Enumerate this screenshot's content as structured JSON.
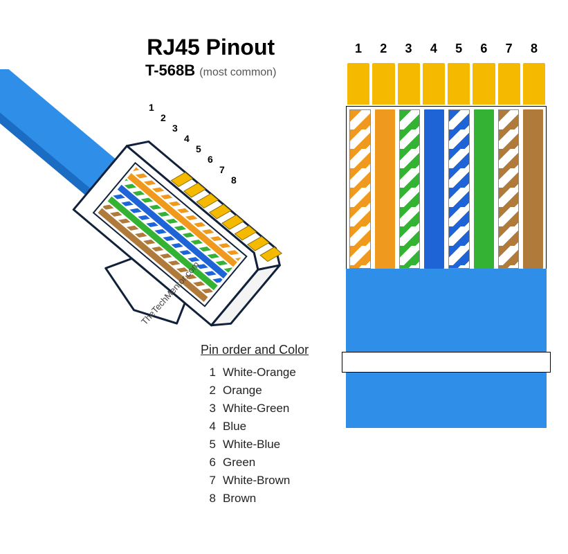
{
  "title": {
    "main": "RJ45  Pinout",
    "standard": "T-568B",
    "note": "(most common)"
  },
  "source_credit": "TheTechMentor.com",
  "colors": {
    "contact_gold": "#f5b900",
    "cable_jacket": "#2f8fe8",
    "cable_jacket_side": "#1b6dc4",
    "connector_outline": "#11213a",
    "connector_fill": "#ffffff",
    "orange": "#ef9a1e",
    "blue": "#1f64d6",
    "green": "#33b233",
    "brown": "#b07a3a",
    "white": "#ffffff"
  },
  "pins": [
    {
      "num": "1",
      "label": "White-Orange",
      "type": "striped",
      "stripe": "#ef9a1e"
    },
    {
      "num": "2",
      "label": "Orange",
      "type": "solid",
      "solid": "#ef9a1e"
    },
    {
      "num": "3",
      "label": "White-Green",
      "type": "striped",
      "stripe": "#33b233"
    },
    {
      "num": "4",
      "label": "Blue",
      "type": "solid",
      "solid": "#1f64d6"
    },
    {
      "num": "5",
      "label": "White-Blue",
      "type": "striped",
      "stripe": "#1f64d6"
    },
    {
      "num": "6",
      "label": "Green",
      "type": "solid",
      "solid": "#33b233"
    },
    {
      "num": "7",
      "label": "White-Brown",
      "type": "striped",
      "stripe": "#b07a3a"
    },
    {
      "num": "8",
      "label": "Brown",
      "type": "solid",
      "solid": "#b07a3a"
    }
  ],
  "table_header": "Pin order and Color",
  "iso_pin_labels": [
    "1",
    "2",
    "3",
    "4",
    "5",
    "6",
    "7",
    "8"
  ]
}
